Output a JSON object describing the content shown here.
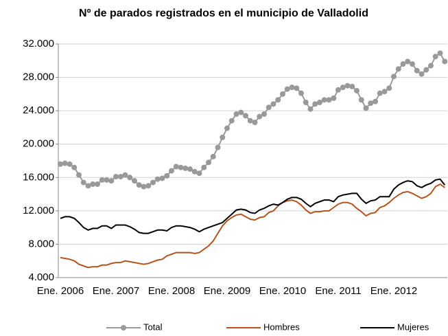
{
  "chart_data": {
    "type": "line",
    "title": "Nº de parados registrados en el municipio de Valladolid",
    "categories": [
      "Ene. 2006",
      null,
      null,
      null,
      null,
      null,
      null,
      null,
      null,
      null,
      null,
      null,
      "Ene. 2007",
      null,
      null,
      null,
      null,
      null,
      null,
      null,
      null,
      null,
      null,
      null,
      "Ene. 2008",
      null,
      null,
      null,
      null,
      null,
      null,
      null,
      null,
      null,
      null,
      null,
      "Ene. 2009",
      null,
      null,
      null,
      null,
      null,
      null,
      null,
      null,
      null,
      null,
      null,
      "Ene. 2010",
      null,
      null,
      null,
      null,
      null,
      null,
      null,
      null,
      null,
      null,
      null,
      "Ene. 2011",
      null,
      null,
      null,
      null,
      null,
      null,
      null,
      null,
      null,
      null,
      null,
      "Ene. 2012",
      null,
      null,
      null,
      null,
      null,
      null,
      null,
      null,
      null,
      null,
      null
    ],
    "series": [
      {
        "name": "Total",
        "color": "#999999",
        "marker": "circle",
        "values": [
          17600,
          17700,
          17600,
          17200,
          16300,
          15400,
          15000,
          15200,
          15200,
          15700,
          15700,
          15600,
          16100,
          16100,
          16300,
          16000,
          15600,
          15100,
          14900,
          15000,
          15400,
          15800,
          15900,
          16200,
          16800,
          17300,
          17200,
          17100,
          17000,
          16700,
          16500,
          17200,
          17800,
          18500,
          19600,
          20800,
          21900,
          22800,
          23600,
          23800,
          23400,
          22800,
          22600,
          23300,
          23600,
          24400,
          24800,
          25300,
          26000,
          26600,
          26800,
          26700,
          26100,
          25000,
          24200,
          24800,
          25000,
          25300,
          25300,
          25500,
          26500,
          26800,
          27000,
          26900,
          26400,
          25300,
          24300,
          24900,
          25100,
          26100,
          26300,
          26700,
          28100,
          29000,
          29600,
          29900,
          29600,
          28800,
          28400,
          28900,
          29400,
          30500,
          30900,
          29900
        ]
      },
      {
        "name": "Hombres",
        "color": "#b5531c",
        "values": [
          6400,
          6300,
          6200,
          6000,
          5600,
          5400,
          5200,
          5300,
          5300,
          5500,
          5500,
          5700,
          5800,
          5800,
          6000,
          5900,
          5800,
          5700,
          5600,
          5700,
          5900,
          6100,
          6200,
          6600,
          6800,
          7000,
          7000,
          7000,
          7000,
          6900,
          7000,
          7400,
          7800,
          8400,
          9300,
          10200,
          10800,
          11200,
          11500,
          11600,
          11300,
          11000,
          10900,
          11200,
          11300,
          11800,
          12000,
          12600,
          13000,
          13200,
          13300,
          13100,
          12700,
          12100,
          11700,
          11900,
          11900,
          12000,
          12000,
          12400,
          12800,
          13000,
          13000,
          12800,
          12300,
          11900,
          11400,
          11700,
          11800,
          12400,
          12600,
          13000,
          13500,
          13900,
          14200,
          14300,
          14100,
          13800,
          13500,
          13700,
          14100,
          14900,
          15200,
          14800
        ]
      },
      {
        "name": "Mujeres",
        "color": "#000000",
        "values": [
          11100,
          11300,
          11300,
          11100,
          10600,
          10000,
          9700,
          9900,
          9900,
          10200,
          10200,
          9900,
          10300,
          10300,
          10300,
          10100,
          9800,
          9400,
          9300,
          9300,
          9500,
          9700,
          9700,
          9600,
          10000,
          10200,
          10200,
          10100,
          10000,
          9800,
          9500,
          9800,
          10000,
          10200,
          10400,
          10600,
          11100,
          11600,
          12100,
          12200,
          12100,
          11800,
          11700,
          12100,
          12300,
          12600,
          12800,
          12700,
          13000,
          13400,
          13600,
          13600,
          13400,
          12900,
          12500,
          12900,
          13100,
          13300,
          13300,
          13100,
          13700,
          13900,
          14000,
          14100,
          14100,
          13400,
          12900,
          13200,
          13300,
          13700,
          13700,
          13700,
          14600,
          15100,
          15400,
          15600,
          15500,
          15000,
          14800,
          15100,
          15300,
          15700,
          15800,
          15100
        ]
      }
    ],
    "ylim": [
      4000,
      32000
    ],
    "yticks": [
      {
        "value": 4000,
        "label": "4.000"
      },
      {
        "value": 8000,
        "label": "8.000"
      },
      {
        "value": 12000,
        "label": "12.000"
      },
      {
        "value": 16000,
        "label": "16.000"
      },
      {
        "value": 20000,
        "label": "20.000"
      },
      {
        "value": 24000,
        "label": "24.000"
      },
      {
        "value": 28000,
        "label": "28.000"
      },
      {
        "value": 32000,
        "label": "32.000"
      }
    ],
    "grid": true,
    "legend": "bottom"
  }
}
